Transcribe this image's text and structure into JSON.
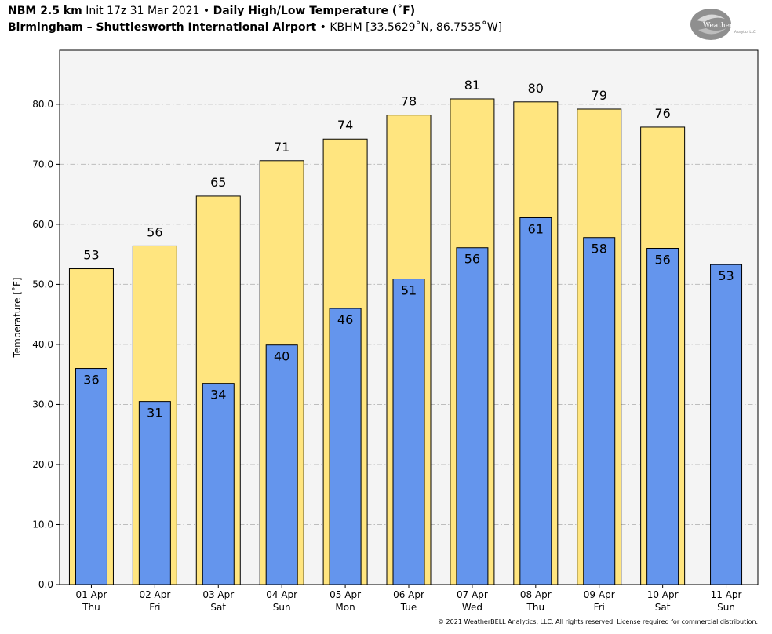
{
  "header": {
    "model": "NBM 2.5 km",
    "init": "Init 17z 31 Mar 2021",
    "sep": "•",
    "product": "Daily High/Low Temperature (˚F)",
    "station_name": "Birmingham – Shuttlesworth International Airport",
    "station_info": "KBHM [33.5629˚N, 86.7535˚W]"
  },
  "logo": {
    "text": "WeatherBELL",
    "sub": "Analytics LLC"
  },
  "copyright": "© 2021 WeatherBELL Analytics, LLC. All rights reserved. License required for commercial distribution.",
  "chart_data": {
    "type": "bar",
    "title": "Daily High/Low Temperature (˚F)",
    "xlabel": "",
    "ylabel": "Temperature [˚F]",
    "ylim": [
      0,
      89
    ],
    "yticks": [
      "0.0",
      "10.0",
      "20.0",
      "30.0",
      "40.0",
      "50.0",
      "60.0",
      "70.0",
      "80.0"
    ],
    "grid": "horizontal dash-dot",
    "categories": [
      [
        "01 Apr",
        "Thu"
      ],
      [
        "02 Apr",
        "Fri"
      ],
      [
        "03 Apr",
        "Sat"
      ],
      [
        "04 Apr",
        "Sun"
      ],
      [
        "05 Apr",
        "Mon"
      ],
      [
        "06 Apr",
        "Tue"
      ],
      [
        "07 Apr",
        "Wed"
      ],
      [
        "08 Apr",
        "Thu"
      ],
      [
        "09 Apr",
        "Fri"
      ],
      [
        "10 Apr",
        "Sat"
      ],
      [
        "11 Apr",
        "Sun"
      ]
    ],
    "series": [
      {
        "name": "High",
        "color": "#ffe57f",
        "values": [
          52.6,
          56.4,
          64.7,
          70.6,
          74.2,
          78.2,
          80.9,
          80.4,
          79.2,
          76.2,
          null
        ],
        "labels": [
          "53",
          "56",
          "65",
          "71",
          "74",
          "78",
          "81",
          "80",
          "79",
          "76",
          ""
        ]
      },
      {
        "name": "Low",
        "color": "#6495ed",
        "values": [
          36.0,
          30.5,
          33.5,
          39.9,
          46.0,
          50.9,
          56.1,
          61.1,
          57.8,
          56.0,
          53.3
        ],
        "labels": [
          "36",
          "31",
          "34",
          "40",
          "46",
          "51",
          "56",
          "61",
          "58",
          "56",
          "53"
        ]
      }
    ]
  }
}
